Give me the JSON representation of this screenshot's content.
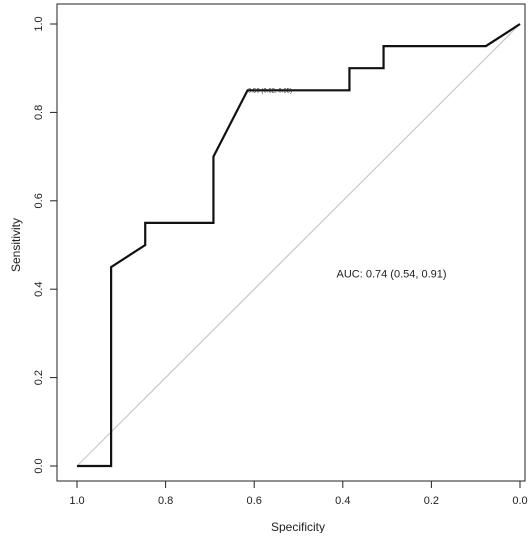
{
  "chart_data": {
    "type": "line",
    "title": "",
    "xlabel": "Specificity",
    "ylabel": "Sensitivity",
    "x_reversed": true,
    "xlim": [
      1.0,
      0.0
    ],
    "ylim": [
      0.0,
      1.0
    ],
    "x_ticks": [
      1.0,
      0.8,
      0.6,
      0.4,
      0.2,
      0.0
    ],
    "x_tick_labels": [
      "1.0",
      "0.8",
      "0.6",
      "0.4",
      "0.2",
      "0.0"
    ],
    "y_ticks": [
      0.0,
      0.2,
      0.4,
      0.6,
      0.8,
      1.0
    ],
    "y_tick_labels": [
      "0.0",
      "0.2",
      "0.4",
      "0.6",
      "0.8",
      "1.0"
    ],
    "grid": false,
    "legend": "none",
    "series": [
      {
        "style": "step",
        "color": "#111111",
        "points": [
          [
            1.0,
            0.0
          ],
          [
            0.923,
            0.0
          ],
          [
            0.923,
            0.45
          ],
          [
            0.846,
            0.5
          ],
          [
            0.846,
            0.55
          ],
          [
            0.692,
            0.55
          ],
          [
            0.692,
            0.7
          ],
          [
            0.615,
            0.85
          ],
          [
            0.385,
            0.85
          ],
          [
            0.385,
            0.9
          ],
          [
            0.308,
            0.9
          ],
          [
            0.308,
            0.95
          ],
          [
            0.077,
            0.95
          ],
          [
            0.0,
            1.0
          ]
        ]
      }
    ],
    "reference_line": {
      "from": [
        1.0,
        0.0
      ],
      "to": [
        0.0,
        1.0
      ],
      "color": "#c8c8c8"
    },
    "annotations": [
      {
        "text": "AUC: 0.74 (0.54, 0.91)",
        "x": 0.29,
        "y": 0.435
      },
      {
        "text": "0.50 (0.62, 0.85)",
        "x": 0.614,
        "y": 0.85
      }
    ]
  }
}
